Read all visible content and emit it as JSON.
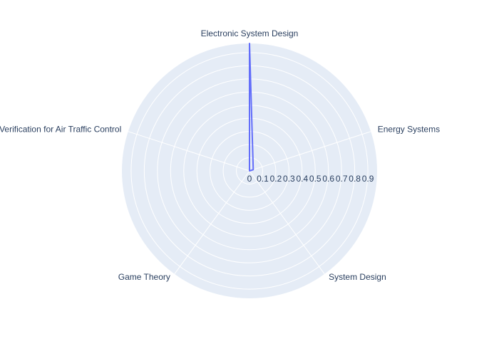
{
  "chart_data": {
    "type": "radar",
    "categories": [
      "Electronic System Design",
      "Energy Systems",
      "System Design",
      "Game Theory",
      "Formal Verification for Air Traffic Control"
    ],
    "series": [
      {
        "values": [
          0.97,
          0.03,
          0.0,
          0.0,
          0.0
        ]
      }
    ],
    "radial_range": [
      0,
      0.97
    ],
    "radial_ticks": [
      0,
      0.1,
      0.2,
      0.3,
      0.4,
      0.5,
      0.6,
      0.7,
      0.8,
      0.9
    ],
    "grid": true,
    "colors": {
      "background": "#e5ecf6",
      "grid": "#ffffff",
      "line": "#636efa",
      "text": "#2a3f5f"
    }
  }
}
